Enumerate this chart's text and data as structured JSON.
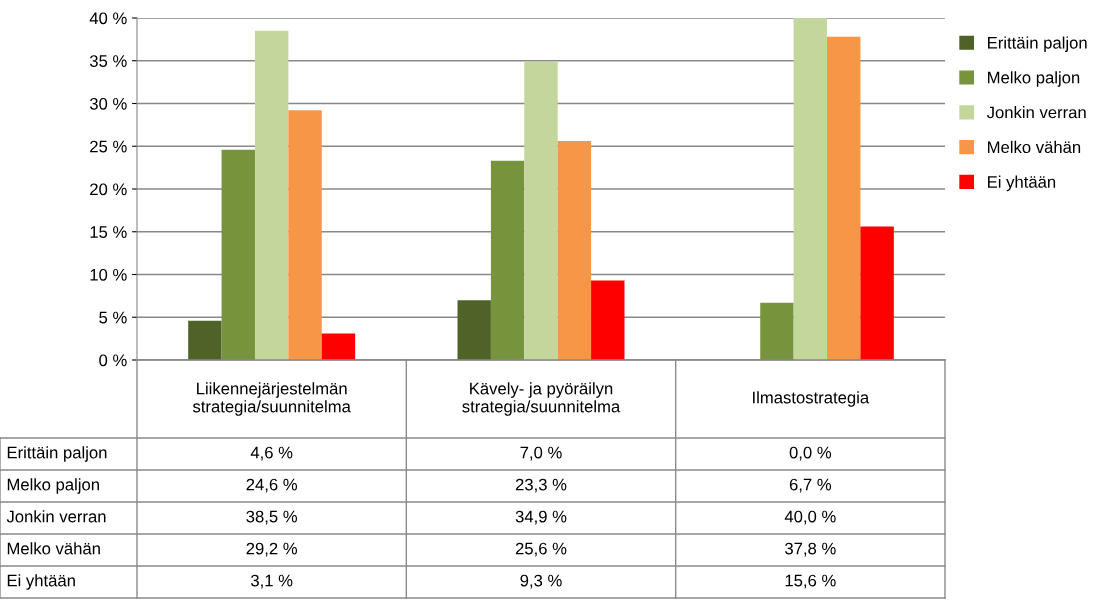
{
  "chart_data": {
    "type": "bar",
    "categories": [
      "Liikennejärjestelmän\nstrategia/suunnitelma",
      "Kävely- ja pyöräilyn\nstrategia/suunnitelma",
      "Ilmastostrategia"
    ],
    "series": [
      {
        "name": "Erittäin paljon",
        "color": "#4f6228",
        "values": [
          4.6,
          7.0,
          0.0
        ],
        "value_labels": [
          "4,6 %",
          "7,0 %",
          "0,0 %"
        ]
      },
      {
        "name": "Melko paljon",
        "color": "#77933c",
        "values": [
          24.6,
          23.3,
          6.7
        ],
        "value_labels": [
          "24,6 %",
          "23,3 %",
          "6,7 %"
        ]
      },
      {
        "name": "Jonkin verran",
        "color": "#c3d69b",
        "values": [
          38.5,
          34.9,
          40.0
        ],
        "value_labels": [
          "38,5 %",
          "34,9 %",
          "40,0 %"
        ]
      },
      {
        "name": "Melko vähän",
        "color": "#f79646",
        "values": [
          29.2,
          25.6,
          37.8
        ],
        "value_labels": [
          "29,2 %",
          "25,6 %",
          "37,8 %"
        ]
      },
      {
        "name": "Ei yhtään",
        "color": "#ff0000",
        "values": [
          3.1,
          9.3,
          15.6
        ],
        "value_labels": [
          "3,1 %",
          "9,3 %",
          "15,6 %"
        ]
      }
    ],
    "ylim": [
      0,
      40
    ],
    "yticks": [
      {
        "value": 0,
        "label": "0 %"
      },
      {
        "value": 5,
        "label": "5 %"
      },
      {
        "value": 10,
        "label": "10 %"
      },
      {
        "value": 15,
        "label": "15 %"
      },
      {
        "value": 20,
        "label": "20 %"
      },
      {
        "value": 25,
        "label": "25 %"
      },
      {
        "value": 30,
        "label": "30 %"
      },
      {
        "value": 35,
        "label": "35 %"
      },
      {
        "value": 40,
        "label": "40 %"
      }
    ],
    "grid": "y",
    "legend": "right",
    "tick_labels": "y"
  }
}
